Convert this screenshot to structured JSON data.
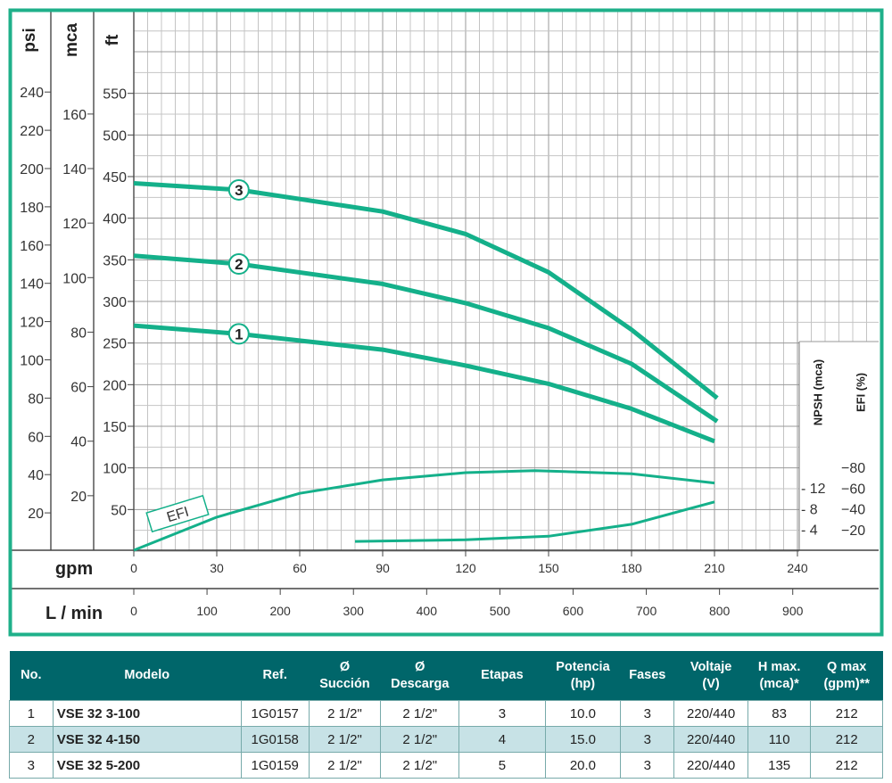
{
  "chart_data": {
    "type": "line",
    "title": "",
    "colors": {
      "curve": "#14b08a",
      "frame": "#1fb08a"
    },
    "xaxis": {
      "label": "gpm",
      "range": [
        0,
        270
      ],
      "ticks": [
        0,
        30,
        60,
        90,
        120,
        150,
        180,
        210,
        240
      ]
    },
    "x2axis": {
      "label": "L / min",
      "ticks": [
        0,
        100,
        200,
        300,
        400,
        500,
        600,
        700,
        800,
        900
      ]
    },
    "yaxes": {
      "psi": {
        "label": "psi",
        "ticks": [
          20,
          40,
          60,
          80,
          100,
          120,
          140,
          160,
          180,
          200,
          220,
          240
        ]
      },
      "mca": {
        "label": "mca",
        "ticks": [
          20,
          40,
          60,
          80,
          100,
          120,
          140,
          160
        ]
      },
      "ft": {
        "label": "ft",
        "ticks": [
          50,
          100,
          150,
          200,
          250,
          300,
          350,
          400,
          450,
          500,
          550
        ],
        "range": [
          0,
          660
        ]
      },
      "npsh": {
        "label": "NPSH (mca)",
        "ticks": [
          4,
          8,
          12
        ]
      },
      "efi": {
        "label": "EFI (%)",
        "ticks": [
          20,
          40,
          60,
          80
        ]
      }
    },
    "series": [
      {
        "name": "3",
        "unit": "ft",
        "x": [
          0,
          38,
          90,
          120,
          150,
          180,
          211
        ],
        "y": [
          442,
          434,
          408,
          381,
          335,
          266,
          184
        ]
      },
      {
        "name": "2",
        "unit": "ft",
        "x": [
          0,
          38,
          90,
          120,
          150,
          180,
          211
        ],
        "y": [
          355,
          345,
          321,
          298,
          268,
          225,
          156
        ]
      },
      {
        "name": "1",
        "unit": "ft",
        "x": [
          0,
          38,
          90,
          120,
          150,
          180,
          210
        ],
        "y": [
          271,
          261,
          242,
          223,
          201,
          171,
          132
        ]
      },
      {
        "name": "EFI",
        "unit": "%",
        "x": [
          0,
          30,
          60,
          90,
          120,
          145,
          180,
          210
        ],
        "y": [
          0,
          32,
          55,
          68,
          75,
          77,
          74,
          65
        ]
      },
      {
        "name": "NPSH",
        "unit": "mca",
        "x": [
          80,
          120,
          150,
          180,
          210
        ],
        "y": [
          1.7,
          2.0,
          2.7,
          5.0,
          9.3
        ]
      }
    ],
    "annotations": [
      "1",
      "2",
      "3",
      "EFI"
    ]
  },
  "table": {
    "headers": [
      [
        "No.",
        ""
      ],
      [
        "Modelo",
        ""
      ],
      [
        "Ref.",
        ""
      ],
      [
        "Ø",
        "Succión"
      ],
      [
        "Ø",
        "Descarga"
      ],
      [
        "Etapas",
        ""
      ],
      [
        "Potencia",
        "(hp)"
      ],
      [
        "Fases",
        ""
      ],
      [
        "Voltaje",
        "(V)"
      ],
      [
        "H max.",
        "(mca)*"
      ],
      [
        "Q max",
        "(gpm)**"
      ]
    ],
    "rows": [
      [
        "1",
        "VSE 32 3-100",
        "1G0157",
        "2 1/2\"",
        "2 1/2\"",
        "3",
        "10.0",
        "3",
        "220/440",
        "83",
        "212"
      ],
      [
        "2",
        "VSE 32 4-150",
        "1G0158",
        "2 1/2\"",
        "2 1/2\"",
        "4",
        "15.0",
        "3",
        "220/440",
        "110",
        "212"
      ],
      [
        "3",
        "VSE 32 5-200",
        "1G0159",
        "2 1/2\"",
        "2 1/2\"",
        "5",
        "20.0",
        "3",
        "220/440",
        "135",
        "212"
      ]
    ]
  }
}
